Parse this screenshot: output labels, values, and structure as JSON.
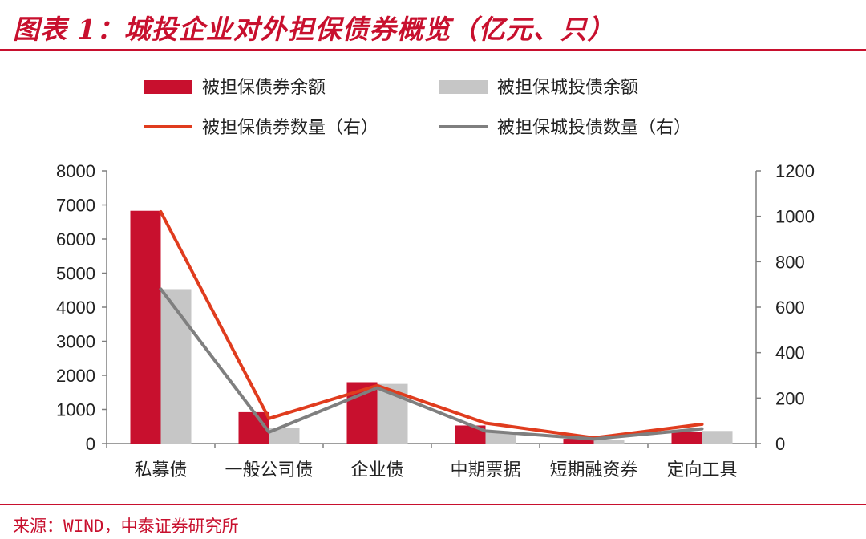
{
  "header": {
    "title": "图表 1：城投企业对外担保债券概览（亿元、只）"
  },
  "footer": {
    "source": "来源：WIND，中泰证券研究所"
  },
  "colors": {
    "brand": "#C8102E",
    "bar_primary": "#C8102E",
    "bar_secondary": "#C6C6C6",
    "line_primary": "#E03C1E",
    "line_secondary": "#7F7F7F",
    "axis": "#7F7F7F"
  },
  "chart_data": {
    "type": "bar",
    "title": "",
    "categories": [
      "私募债",
      "一般公司债",
      "企业债",
      "中期票据",
      "短期融资券",
      "定向工具"
    ],
    "series": [
      {
        "name": "被担保债券余额",
        "type": "bar",
        "axis": "left",
        "values": [
          6830,
          920,
          1800,
          530,
          140,
          330
        ]
      },
      {
        "name": "被担保城投债余额",
        "type": "bar",
        "axis": "left",
        "values": [
          4530,
          450,
          1750,
          340,
          110,
          370
        ]
      },
      {
        "name": "被担保债券数量（右）",
        "type": "line",
        "axis": "right",
        "values": [
          1020,
          110,
          255,
          90,
          25,
          85
        ]
      },
      {
        "name": "被担保城投债数量（右）",
        "type": "line",
        "axis": "right",
        "values": [
          680,
          50,
          245,
          55,
          20,
          65
        ]
      }
    ],
    "y_left": {
      "min": 0,
      "max": 8000,
      "step": 1000,
      "ticks": [
        "0",
        "1000",
        "2000",
        "3000",
        "4000",
        "5000",
        "6000",
        "7000",
        "8000"
      ]
    },
    "y_right": {
      "min": 0,
      "max": 1200,
      "step": 200,
      "ticks": [
        "0",
        "200",
        "400",
        "600",
        "800",
        "1000",
        "1200"
      ]
    },
    "grid": false,
    "legend_position": "top"
  }
}
